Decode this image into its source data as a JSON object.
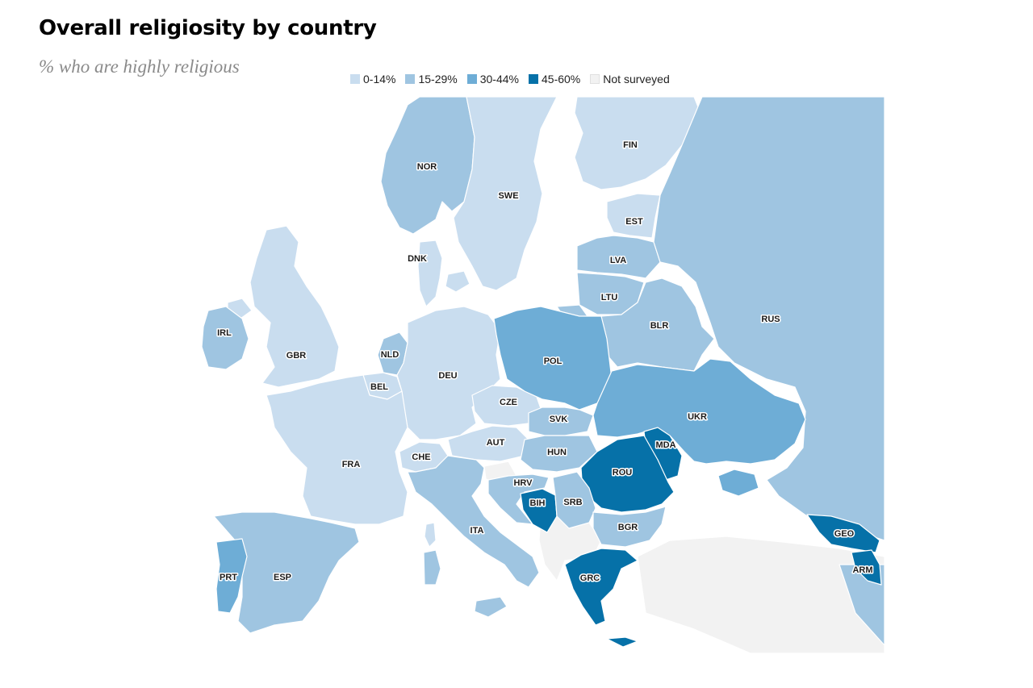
{
  "title": "Overall religiosity by country",
  "subtitle": "% who are highly religious",
  "colors": {
    "0-14": "#c9ddef",
    "15-29": "#9fc5e1",
    "30-44": "#6eadd6",
    "45-60": "#0671a8",
    "not_surveyed": "#f2f2f2",
    "sea": "#ffffff"
  },
  "legend": [
    {
      "key": "0-14",
      "label": "0-14%"
    },
    {
      "key": "15-29",
      "label": "15-29%"
    },
    {
      "key": "30-44",
      "label": "30-44%"
    },
    {
      "key": "45-60",
      "label": "45-60%"
    },
    {
      "key": "not_surveyed",
      "label": "Not surveyed"
    }
  ],
  "countries": [
    {
      "code": "NOR",
      "bin": "15-29"
    },
    {
      "code": "SWE",
      "bin": "0-14"
    },
    {
      "code": "FIN",
      "bin": "0-14"
    },
    {
      "code": "DNK",
      "bin": "0-14"
    },
    {
      "code": "EST",
      "bin": "0-14"
    },
    {
      "code": "LVA",
      "bin": "15-29"
    },
    {
      "code": "LTU",
      "bin": "15-29"
    },
    {
      "code": "BLR",
      "bin": "15-29"
    },
    {
      "code": "RUS",
      "bin": "15-29"
    },
    {
      "code": "IRL",
      "bin": "15-29"
    },
    {
      "code": "GBR",
      "bin": "0-14"
    },
    {
      "code": "NLD",
      "bin": "15-29"
    },
    {
      "code": "BEL",
      "bin": "0-14"
    },
    {
      "code": "DEU",
      "bin": "0-14"
    },
    {
      "code": "POL",
      "bin": "30-44"
    },
    {
      "code": "CZE",
      "bin": "0-14"
    },
    {
      "code": "SVK",
      "bin": "15-29"
    },
    {
      "code": "UKR",
      "bin": "30-44"
    },
    {
      "code": "MDA",
      "bin": "45-60"
    },
    {
      "code": "FRA",
      "bin": "0-14"
    },
    {
      "code": "CHE",
      "bin": "0-14"
    },
    {
      "code": "AUT",
      "bin": "0-14"
    },
    {
      "code": "HUN",
      "bin": "15-29"
    },
    {
      "code": "ROU",
      "bin": "45-60"
    },
    {
      "code": "HRV",
      "bin": "15-29"
    },
    {
      "code": "BIH",
      "bin": "45-60"
    },
    {
      "code": "SRB",
      "bin": "15-29"
    },
    {
      "code": "BGR",
      "bin": "15-29"
    },
    {
      "code": "ITA",
      "bin": "15-29"
    },
    {
      "code": "GEO",
      "bin": "45-60"
    },
    {
      "code": "ARM",
      "bin": "45-60"
    },
    {
      "code": "PRT",
      "bin": "30-44"
    },
    {
      "code": "ESP",
      "bin": "15-29"
    },
    {
      "code": "GRC",
      "bin": "45-60"
    }
  ]
}
